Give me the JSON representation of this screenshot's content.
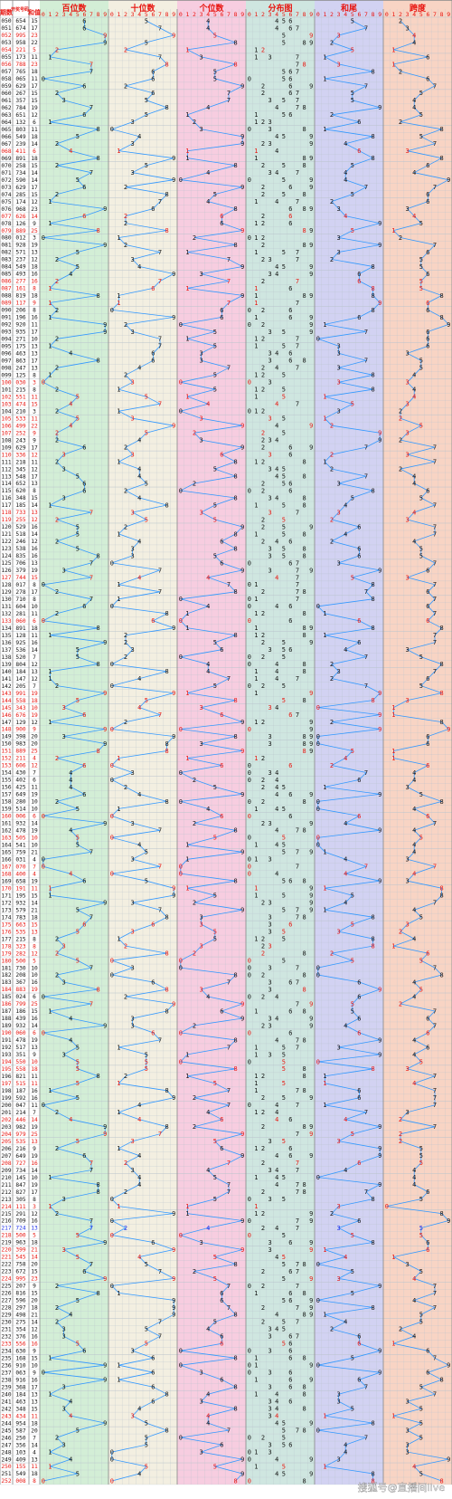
{
  "headers": {
    "col_period": "期数",
    "col_draw": "开奖号码",
    "col_sum": "和值",
    "sec_bai": "百位数",
    "sec_shi": "十位数",
    "sec_ge": "个位数",
    "sec_dist": "分布图",
    "sec_hewei": "和尾",
    "sec_kuadu": "跨度"
  },
  "digit_labels": [
    "0",
    "1",
    "2",
    "3",
    "4",
    "5",
    "6",
    "7",
    "8",
    "9"
  ],
  "watermark": "搜狐号@直播间live",
  "colors": {
    "bai": "#d3eed6",
    "shi": "#f3efe1",
    "ge": "#f7cde0",
    "dist": "#cfe6e0",
    "hewei": "#d2d2f2",
    "kuadu": "#f8d4c4",
    "line": "#3399ff",
    "red": "#e8140f",
    "blue": "#1e2ee8",
    "black": "#111111",
    "grid": "#b9c3cc"
  },
  "chart_data": {
    "type": "table",
    "first_period": 50,
    "draws": [
      "654",
      "674",
      "995",
      "958",
      "221",
      "173",
      "788",
      "765",
      "065",
      "629",
      "267",
      "357",
      "784",
      "651",
      "132",
      "803",
      "549",
      "239",
      "411",
      "891",
      "258",
      "734",
      "590",
      "629",
      "285",
      "174",
      "968",
      "626",
      "126",
      "889",
      "012",
      "928",
      "571",
      "237",
      "549",
      "493",
      "277",
      "161",
      "819",
      "117",
      "206",
      "196",
      "920",
      "935",
      "271",
      "175",
      "463",
      "863",
      "247",
      "125",
      "030",
      "215",
      "551",
      "474",
      "210",
      "533",
      "499",
      "252",
      "243",
      "629",
      "336",
      "218",
      "345",
      "548",
      "652",
      "620",
      "348",
      "185",
      "733",
      "255",
      "529",
      "518",
      "246",
      "538",
      "835",
      "706",
      "379",
      "744",
      "017",
      "278",
      "710",
      "604",
      "281",
      "060",
      "891",
      "128",
      "925",
      "536",
      "520",
      "804",
      "184",
      "147",
      "205",
      "991",
      "558",
      "343",
      "676",
      "129",
      "900",
      "398",
      "983",
      "889",
      "211",
      "606",
      "430",
      "402",
      "425",
      "649",
      "280",
      "514",
      "006",
      "932",
      "478",
      "505",
      "541",
      "759",
      "031",
      "070",
      "400",
      "658",
      "191",
      "195",
      "932",
      "579",
      "783",
      "663",
      "535",
      "215",
      "323",
      "282",
      "500",
      "730",
      "208",
      "367",
      "883",
      "024",
      "799",
      "186",
      "439",
      "932",
      "060",
      "478",
      "517",
      "351",
      "550",
      "558",
      "821",
      "515",
      "187",
      "592",
      "047",
      "214",
      "446",
      "982",
      "979",
      "535",
      "216",
      "649",
      "727",
      "734",
      "145",
      "847",
      "827",
      "305",
      "111",
      "291",
      "709",
      "724",
      "500",
      "963",
      "399",
      "545",
      "758",
      "672",
      "995",
      "207",
      "816",
      "596",
      "297",
      "498",
      "275",
      "354",
      "376",
      "556",
      "630",
      "168",
      "910",
      "063",
      "916",
      "368",
      "184",
      "463",
      "348",
      "434",
      "954",
      "587",
      "250",
      "356",
      "103",
      "409",
      "155",
      "549",
      "008"
    ]
  }
}
